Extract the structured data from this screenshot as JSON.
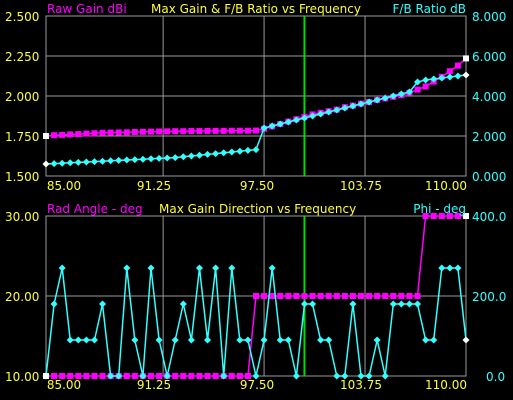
{
  "colors": {
    "background": "#000000",
    "grid": "#9a9a9a",
    "magenta": "#ff00ff",
    "cyan": "#33ffff",
    "yellow": "#ffff33",
    "marker_line": "#00dd00",
    "white": "#ffffff"
  },
  "top": {
    "title": "Max Gain & F/B Ratio vs Frequency",
    "left_label": "Raw Gain dBi",
    "right_label": "F/B Ratio dB",
    "left_ticks": [
      "2.500",
      "2.250",
      "2.000",
      "1.750",
      "1.500"
    ],
    "right_ticks": [
      "8.000",
      "6.000",
      "4.000",
      "2.000",
      "0.000"
    ],
    "x_ticks": [
      "85.00",
      "91.25",
      "97.50",
      "103.75",
      "110.00"
    ]
  },
  "bottom": {
    "title": "Max Gain Direction vs Frequency",
    "left_label": "Rad Angle - deg",
    "right_label": "Phi - deg",
    "left_ticks": [
      "30.00",
      "20.00",
      "10.00"
    ],
    "right_ticks": [
      "400.0",
      "200.0",
      "0.0"
    ],
    "x_ticks": [
      "85.00",
      "91.25",
      "97.50",
      "103.75",
      "110.00"
    ]
  },
  "chart_data": [
    {
      "type": "line",
      "title": "Max Gain & F/B Ratio vs Frequency",
      "x_range": [
        84,
        110
      ],
      "marker_x": 100,
      "y_left_range": [
        1.5,
        2.5
      ],
      "y_right_range": [
        0,
        8
      ],
      "series": [
        {
          "name": "Raw Gain dBi",
          "axis": "left",
          "color": "magenta",
          "x": [
            84,
            84.5,
            85,
            85.5,
            86,
            86.5,
            87,
            87.5,
            88,
            88.5,
            89,
            89.5,
            90,
            90.5,
            91,
            91.5,
            92,
            92.5,
            93,
            93.5,
            94,
            94.5,
            95,
            95.5,
            96,
            96.5,
            97,
            97.5,
            98,
            98.5,
            99,
            99.5,
            100,
            100.5,
            101,
            101.5,
            102,
            102.5,
            103,
            103.5,
            104,
            104.5,
            105,
            105.5,
            106,
            106.5,
            107,
            107.5,
            108,
            108.5,
            109,
            109.5,
            110
          ],
          "values": [
            1.75,
            1.755,
            1.757,
            1.76,
            1.762,
            1.765,
            1.767,
            1.77,
            1.771,
            1.772,
            1.773,
            1.775,
            1.776,
            1.777,
            1.778,
            1.779,
            1.78,
            1.78,
            1.781,
            1.781,
            1.782,
            1.782,
            1.782,
            1.783,
            1.783,
            1.783,
            1.784,
            1.795,
            1.81,
            1.825,
            1.84,
            1.855,
            1.87,
            1.885,
            1.895,
            1.905,
            1.915,
            1.93,
            1.94,
            1.952,
            1.962,
            1.975,
            1.985,
            1.995,
            2.005,
            2.02,
            2.04,
            2.06,
            2.09,
            2.12,
            2.155,
            2.19,
            2.235
          ]
        },
        {
          "name": "F/B Ratio dB",
          "axis": "right",
          "color": "cyan",
          "x": [
            84,
            84.5,
            85,
            85.5,
            86,
            86.5,
            87,
            87.5,
            88,
            88.5,
            89,
            89.5,
            90,
            90.5,
            91,
            91.5,
            92,
            92.5,
            93,
            93.5,
            94,
            94.5,
            95,
            95.5,
            96,
            96.5,
            97,
            97.5,
            98,
            98.5,
            99,
            99.5,
            100,
            100.5,
            101,
            101.5,
            102,
            102.5,
            103,
            103.5,
            104,
            104.5,
            105,
            105.5,
            106,
            106.5,
            107,
            107.5,
            108,
            108.5,
            109,
            109.5,
            110
          ],
          "values": [
            0.6,
            0.62,
            0.64,
            0.66,
            0.68,
            0.7,
            0.72,
            0.74,
            0.76,
            0.78,
            0.8,
            0.82,
            0.84,
            0.86,
            0.88,
            0.9,
            0.92,
            0.96,
            1.0,
            1.04,
            1.08,
            1.12,
            1.16,
            1.2,
            1.24,
            1.28,
            1.32,
            2.4,
            2.5,
            2.6,
            2.7,
            2.8,
            2.9,
            3.0,
            3.1,
            3.2,
            3.3,
            3.4,
            3.5,
            3.6,
            3.7,
            3.8,
            3.9,
            4.0,
            4.1,
            4.2,
            4.7,
            4.8,
            4.85,
            4.9,
            4.95,
            5.0,
            5.05
          ]
        }
      ]
    },
    {
      "type": "line",
      "title": "Max Gain Direction vs Frequency",
      "x_range": [
        84,
        110
      ],
      "marker_x": 100,
      "y_left_range": [
        10,
        30
      ],
      "y_right_range": [
        0,
        400
      ],
      "series": [
        {
          "name": "Rad Angle - deg",
          "axis": "left",
          "color": "magenta",
          "x": [
            84,
            84.5,
            85,
            85.5,
            86,
            86.5,
            87,
            87.5,
            88,
            88.5,
            89,
            89.5,
            90,
            90.5,
            91,
            91.5,
            92,
            92.5,
            93,
            93.5,
            94,
            94.5,
            95,
            95.5,
            96,
            96.5,
            97,
            97.5,
            98,
            98.5,
            99,
            99.5,
            100,
            100.5,
            101,
            101.5,
            102,
            102.5,
            103,
            103.5,
            104,
            104.5,
            105,
            105.5,
            106,
            106.5,
            107,
            107.5,
            108,
            108.5,
            109,
            109.5,
            110
          ],
          "values": [
            10,
            10,
            10,
            10,
            10,
            10,
            10,
            10,
            10,
            10,
            10,
            10,
            10,
            10,
            10,
            10,
            10,
            10,
            10,
            10,
            10,
            10,
            10,
            10,
            10,
            10,
            20,
            20,
            20,
            20,
            20,
            20,
            20,
            20,
            20,
            20,
            20,
            20,
            20,
            20,
            20,
            20,
            20,
            20,
            20,
            20,
            20,
            30,
            30,
            30,
            30,
            30,
            30
          ]
        },
        {
          "name": "Phi - deg",
          "axis": "right",
          "color": "cyan",
          "x": [
            84,
            84.5,
            85,
            85.5,
            86,
            86.5,
            87,
            87.5,
            88,
            88.5,
            89,
            89.5,
            90,
            90.5,
            91,
            91.5,
            92,
            92.5,
            93,
            93.5,
            94,
            94.5,
            95,
            95.5,
            96,
            96.5,
            97,
            97.5,
            98,
            98.5,
            99,
            99.5,
            100,
            100.5,
            101,
            101.5,
            102,
            102.5,
            103,
            103.5,
            104,
            104.5,
            105,
            105.5,
            106,
            106.5,
            107,
            107.5,
            108,
            108.5,
            109,
            109.5,
            110
          ],
          "values": [
            0,
            180,
            270,
            90,
            90,
            90,
            90,
            180,
            0,
            0,
            270,
            90,
            0,
            270,
            90,
            0,
            90,
            180,
            90,
            270,
            90,
            270,
            0,
            270,
            90,
            90,
            0,
            90,
            270,
            90,
            90,
            0,
            180,
            180,
            90,
            90,
            0,
            0,
            180,
            0,
            0,
            90,
            0,
            180,
            180,
            180,
            180,
            90,
            90,
            270,
            270,
            270,
            90
          ]
        }
      ]
    }
  ]
}
